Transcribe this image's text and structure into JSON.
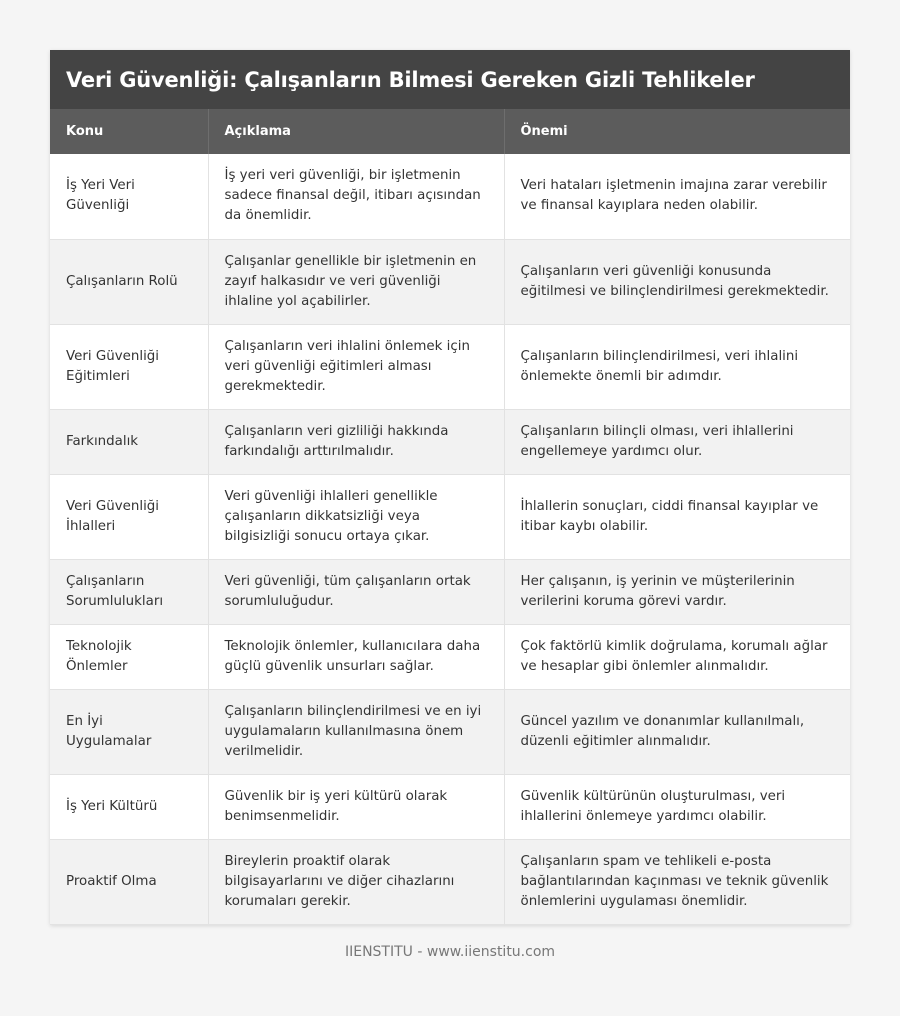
{
  "title": "Veri Güvenliği: Çalışanların Bilmesi Gereken Gizli Tehlikeler",
  "table": {
    "headers": [
      "Konu",
      "Açıklama",
      "Önemi"
    ],
    "rows": [
      {
        "konu": "İş Yeri Veri Güvenliği",
        "aciklama": "İş yeri veri güvenliği, bir işletmenin sadece finansal değil, itibarı açısından da önemlidir.",
        "onemi": "Veri hataları işletmenin imajına zarar verebilir ve finansal kayıplara neden olabilir."
      },
      {
        "konu": "Çalışanların Rolü",
        "aciklama": "Çalışanlar genellikle bir işletmenin en zayıf halkasıdır ve veri güvenliği ihlaline yol açabilirler.",
        "onemi": "Çalışanların veri güvenliği konusunda eğitilmesi ve bilinçlendirilmesi gerekmektedir."
      },
      {
        "konu": "Veri Güvenliği Eğitimleri",
        "aciklama": "Çalışanların veri ihlalini önlemek için veri güvenliği eğitimleri alması gerekmektedir.",
        "onemi": "Çalışanların bilinçlendirilmesi, veri ihlalini önlemekte önemli bir adımdır."
      },
      {
        "konu": "Farkındalık",
        "aciklama": "Çalışanların veri gizliliği hakkında farkındalığı arttırılmalıdır.",
        "onemi": "Çalışanların bilinçli olması, veri ihlallerini engellemeye yardımcı olur."
      },
      {
        "konu": "Veri Güvenliği İhlalleri",
        "aciklama": "Veri güvenliği ihlalleri genellikle çalışanların dikkatsizliği veya bilgisizliği sonucu ortaya çıkar.",
        "onemi": "İhlallerin sonuçları, ciddi finansal kayıplar ve itibar kaybı olabilir."
      },
      {
        "konu": "Çalışanların Sorumlulukları",
        "aciklama": "Veri güvenliği, tüm çalışanların ortak sorumluluğudur.",
        "onemi": "Her çalışanın, iş yerinin ve müşterilerinin verilerini koruma görevi vardır."
      },
      {
        "konu": "Teknolojik Önlemler",
        "aciklama": "Teknolojik önlemler, kullanıcılara daha güçlü güvenlik unsurları sağlar.",
        "onemi": "Çok faktörlü kimlik doğrulama, korumalı ağlar ve hesaplar gibi önlemler alınmalıdır."
      },
      {
        "konu": "En İyi Uygulamalar",
        "aciklama": "Çalışanların bilinçlendirilmesi ve en iyi uygulamaların kullanılmasına önem verilmelidir.",
        "onemi": "Güncel yazılım ve donanımlar kullanılmalı, düzenli eğitimler alınmalıdır."
      },
      {
        "konu": "İş Yeri Kültürü",
        "aciklama": "Güvenlik bir iş yeri kültürü olarak benimsenmelidir.",
        "onemi": "Güvenlik kültürünün oluşturulması, veri ihlallerini önlemeye yardımcı olabilir."
      },
      {
        "konu": "Proaktif Olma",
        "aciklama": "Bireylerin proaktif olarak bilgisayarlarını ve diğer cihazlarını korumaları gerekir.",
        "onemi": "Çalışanların spam ve tehlikeli e-posta bağlantılarından kaçınması ve teknik güvenlik önlemlerini uygulaması önemlidir."
      }
    ]
  },
  "footer": "IIENSTITU - www.iienstitu.com"
}
